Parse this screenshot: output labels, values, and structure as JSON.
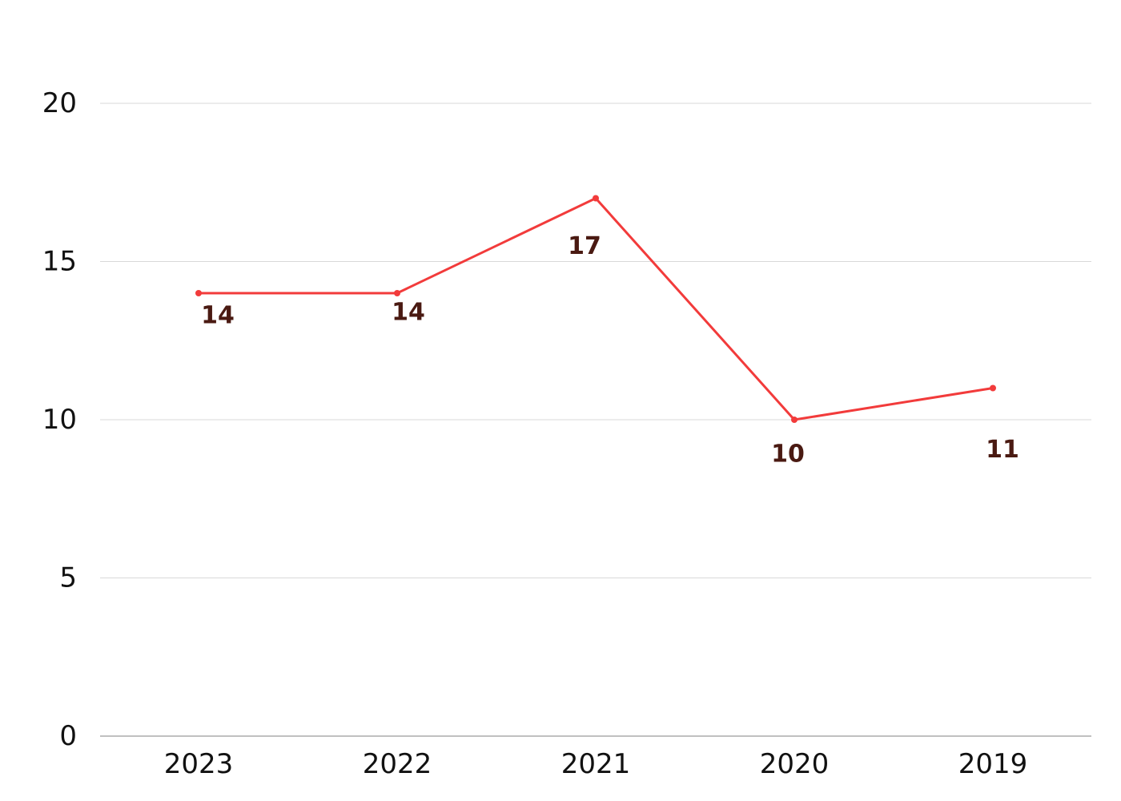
{
  "chart_data": {
    "type": "line",
    "title": "",
    "xlabel": "",
    "ylabel": "",
    "categories": [
      "2023",
      "2022",
      "2021",
      "2020",
      "2019"
    ],
    "series": [
      {
        "values": [
          14,
          14,
          17,
          10,
          11
        ],
        "color": "#f23b3b"
      }
    ],
    "ylim": [
      0,
      20
    ],
    "yticks": [
      0,
      5,
      10,
      15,
      20
    ],
    "grid": true,
    "legend": "none",
    "data_labels": true,
    "label_color": "#4a1a12"
  }
}
